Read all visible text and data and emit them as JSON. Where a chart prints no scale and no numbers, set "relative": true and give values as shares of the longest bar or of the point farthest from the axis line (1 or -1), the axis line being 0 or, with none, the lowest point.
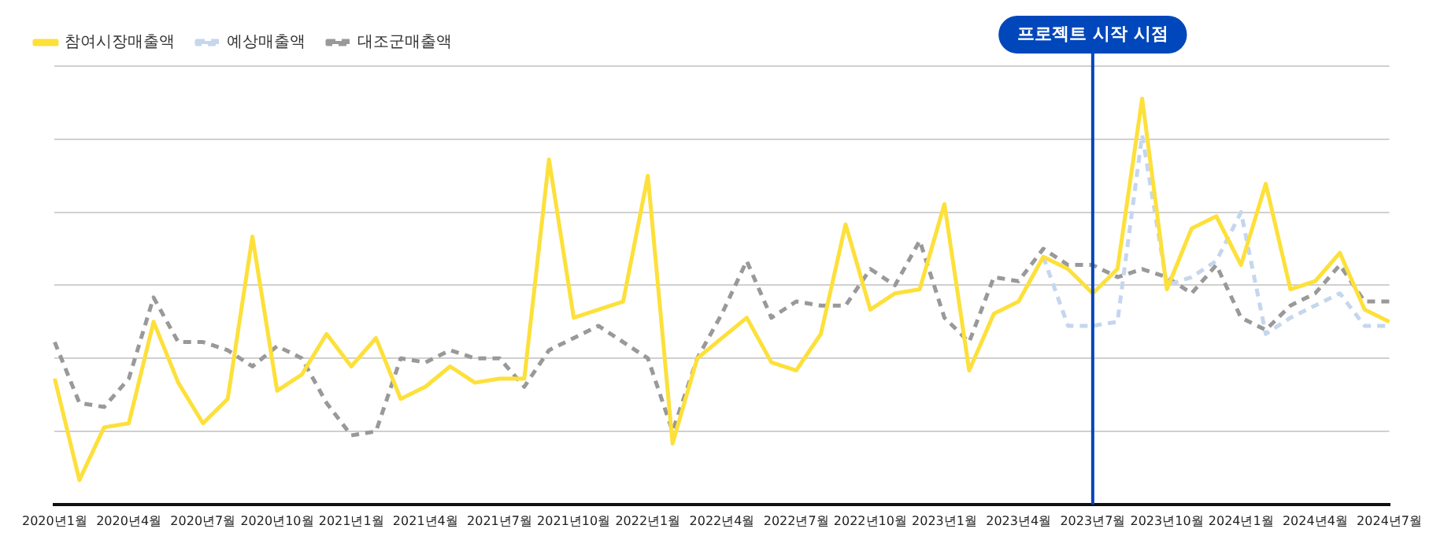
{
  "chart_data": {
    "type": "line",
    "relative": true,
    "grid": "y",
    "legend": "top left",
    "categories": [
      "2020년1월",
      null,
      null,
      "2020년4월",
      null,
      null,
      "2020년7월",
      null,
      null,
      "2020년10월",
      null,
      null,
      "2021년1월",
      null,
      null,
      "2021년4월",
      null,
      null,
      "2021년7월",
      null,
      null,
      "2021년10월",
      null,
      null,
      "2022년1월",
      null,
      null,
      "2022년4월",
      null,
      null,
      "2022년7월",
      null,
      null,
      "2022년10월",
      null,
      null,
      "2023년1월",
      null,
      null,
      "2023년4월",
      null,
      null,
      "2023년7월",
      null,
      null,
      "2023년10월",
      null,
      null,
      "2024년1월",
      null,
      null,
      "2024년4월",
      null,
      null,
      "2024년7월"
    ],
    "series": [
      {
        "name": "참여시장매출액",
        "color": "#fde03a",
        "line_style": "solid",
        "values": [
          0.31,
          0.06,
          0.19,
          0.2,
          0.45,
          0.3,
          0.2,
          0.26,
          0.66,
          0.28,
          0.32,
          0.42,
          0.34,
          0.41,
          0.26,
          0.29,
          0.34,
          0.3,
          0.31,
          0.31,
          0.85,
          0.46,
          0.48,
          0.5,
          0.81,
          0.15,
          0.36,
          0.41,
          0.46,
          0.35,
          0.33,
          0.42,
          0.69,
          0.48,
          0.52,
          0.53,
          0.74,
          0.33,
          0.47,
          0.5,
          0.61,
          0.58,
          0.52,
          0.58,
          1,
          0.53,
          0.68,
          0.71,
          0.59,
          0.79,
          0.53,
          0.55,
          0.62,
          0.48,
          0.45
        ]
      },
      {
        "name": "예상매출액",
        "color": "#c5d6ee",
        "line_style": "dashed",
        "values": [
          null,
          null,
          null,
          null,
          null,
          null,
          null,
          null,
          null,
          null,
          null,
          null,
          null,
          null,
          null,
          null,
          null,
          null,
          null,
          null,
          null,
          null,
          null,
          null,
          null,
          null,
          null,
          null,
          null,
          null,
          null,
          null,
          null,
          null,
          null,
          null,
          null,
          null,
          null,
          null,
          0.61,
          0.44,
          0.44,
          0.45,
          0.91,
          0.54,
          0.56,
          0.6,
          0.72,
          0.42,
          0.46,
          0.49,
          0.52,
          0.44,
          0.44
        ]
      },
      {
        "name": "대조군매출액",
        "color": "#999999",
        "line_style": "dashed",
        "values": [
          0.4,
          0.25,
          0.24,
          0.31,
          0.51,
          0.4,
          0.4,
          0.38,
          0.34,
          0.39,
          0.36,
          0.25,
          0.17,
          0.18,
          0.36,
          0.35,
          0.38,
          0.36,
          0.36,
          0.29,
          0.38,
          0.41,
          0.44,
          0.4,
          0.36,
          0.18,
          0.36,
          0.47,
          0.6,
          0.46,
          0.5,
          0.49,
          0.49,
          0.58,
          0.54,
          0.65,
          0.46,
          0.4,
          0.56,
          0.55,
          0.63,
          0.59,
          0.59,
          0.56,
          0.58,
          0.56,
          0.52,
          0.59,
          0.46,
          0.43,
          0.49,
          0.52,
          0.59,
          0.5,
          0.5
        ]
      }
    ],
    "ref_lines": [
      {
        "axis": "x",
        "value": "2023년7월",
        "label": "프로젝트 시작 시점",
        "color": "#0047bb",
        "line_style": "solid"
      }
    ]
  }
}
